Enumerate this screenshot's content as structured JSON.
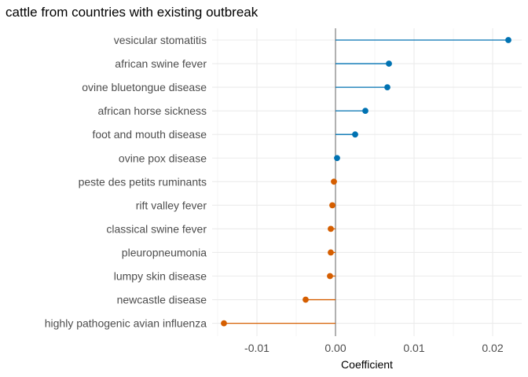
{
  "chart_data": {
    "type": "lollipop",
    "title": "cattle from countries with existing outbreak",
    "xlabel": "Coefficient",
    "ylabel": "",
    "xlim": [
      -0.0157,
      0.0237
    ],
    "x_ticks": [
      -0.01,
      0.0,
      0.01,
      0.02
    ],
    "x_tick_labels": [
      "-0.01",
      "0.00",
      "0.01",
      "0.02"
    ],
    "grid": true,
    "colors": {
      "positive": "#0072B2",
      "negative": "#D55E00",
      "zero_line": "#7f7f7f"
    },
    "categories": [
      "vesicular stomatitis",
      "african swine fever",
      "ovine bluetongue disease",
      "african horse sickness",
      "foot and mouth disease",
      "ovine pox disease",
      "peste des petits ruminants",
      "rift valley fever",
      "classical swine fever",
      "pleuropneumonia",
      "lumpy skin disease",
      "newcastle disease",
      "highly pathogenic avian influenza"
    ],
    "values": [
      0.022,
      0.0068,
      0.0066,
      0.0038,
      0.0025,
      0.0002,
      -0.0002,
      -0.0004,
      -0.0006,
      -0.0006,
      -0.0007,
      -0.0038,
      -0.0142
    ]
  }
}
